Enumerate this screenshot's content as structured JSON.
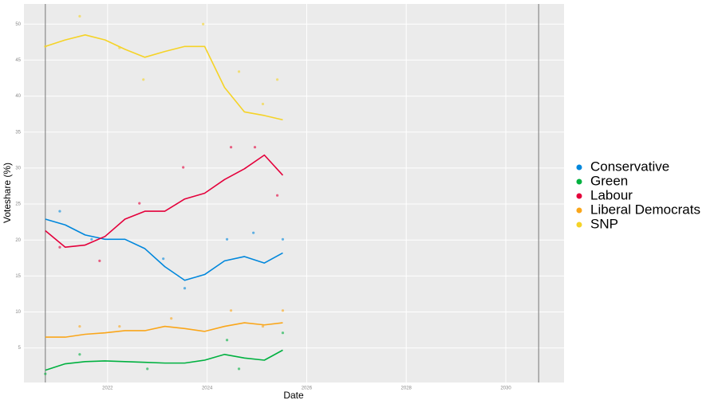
{
  "chart_data": {
    "type": "line",
    "x_label": "Date",
    "y_label": "Voteshare (%)",
    "xlim": [
      2020.32,
      2031.17
    ],
    "ylim": [
      0.2,
      52.8
    ],
    "xticks": [
      2022,
      2024,
      2026,
      2028,
      2030
    ],
    "yticks": [
      5,
      10,
      15,
      20,
      25,
      30,
      35,
      40,
      45,
      50
    ],
    "vlines": [
      2020.75,
      2030.66
    ],
    "grid": true,
    "legend": "right",
    "x": [
      2020.75,
      2021.15,
      2021.55,
      2021.95,
      2022.35,
      2022.75,
      2023.15,
      2023.55,
      2023.95,
      2024.35,
      2024.75,
      2025.15,
      2025.52
    ],
    "series": [
      {
        "name": "Conservative",
        "color": "#0087dc",
        "values": [
          22.9,
          22.1,
          20.7,
          20.1,
          20.1,
          18.8,
          16.3,
          14.4,
          15.2,
          17.1,
          17.7,
          16.8,
          18.2
        ],
        "points_x": [
          2021.04,
          2021.68,
          2023.12,
          2023.55,
          2024.4,
          2024.93,
          2025.52
        ],
        "points_values": [
          24.0,
          20.1,
          17.4,
          13.3,
          20.1,
          21.0,
          20.1
        ]
      },
      {
        "name": "Green",
        "color": "#00b140",
        "values": [
          1.9,
          2.8,
          3.1,
          3.2,
          3.1,
          3.0,
          2.9,
          2.9,
          3.3,
          4.1,
          3.6,
          3.3,
          4.7
        ],
        "points_x": [
          2020.75,
          2021.44,
          2022.8,
          2024.4,
          2024.64,
          2025.52
        ],
        "points_values": [
          1.4,
          4.1,
          2.1,
          6.1,
          2.1,
          7.1
        ]
      },
      {
        "name": "Labour",
        "color": "#e4003b",
        "values": [
          21.3,
          19.0,
          19.3,
          20.5,
          22.9,
          24.0,
          24.0,
          25.7,
          26.5,
          28.4,
          29.9,
          31.8,
          29.0
        ],
        "points_x": [
          2021.04,
          2021.84,
          2022.64,
          2023.52,
          2024.48,
          2024.96,
          2025.41
        ],
        "points_values": [
          19.0,
          17.1,
          25.1,
          30.1,
          32.9,
          32.9,
          26.2
        ]
      },
      {
        "name": "Liberal Democrats",
        "color": "#faa61a",
        "values": [
          6.5,
          6.5,
          6.9,
          7.1,
          7.4,
          7.4,
          8.0,
          7.7,
          7.3,
          8.0,
          8.5,
          8.2,
          8.5
        ],
        "points_x": [
          2021.44,
          2022.24,
          2023.28,
          2024.48,
          2025.12,
          2025.52
        ],
        "points_values": [
          8.0,
          8.0,
          9.1,
          10.2,
          8.0,
          10.2
        ]
      },
      {
        "name": "SNP",
        "color": "#f5d327",
        "values": [
          46.9,
          47.8,
          48.5,
          47.8,
          46.5,
          45.4,
          46.2,
          46.9,
          46.9,
          41.2,
          37.8,
          37.3,
          36.7
        ],
        "points_x": [
          2020.75,
          2021.44,
          2022.24,
          2022.72,
          2023.92,
          2024.64,
          2025.12,
          2025.41
        ],
        "points_values": [
          46.9,
          51.1,
          46.7,
          42.3,
          50.0,
          43.4,
          38.9,
          42.3
        ]
      }
    ]
  }
}
